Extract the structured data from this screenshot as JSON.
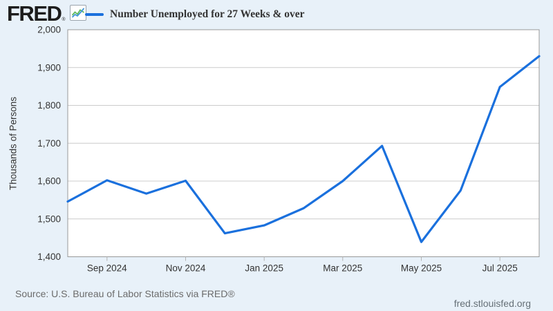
{
  "header": {
    "logo_text": "FRED",
    "logo_registered": "®"
  },
  "footer": {
    "source_text": "Source: U.S. Bureau of Labor Statistics via FRED®",
    "site_url": "fred.stlouisfed.org"
  },
  "colors": {
    "background": "#e8f1f9",
    "plot_background": "#ffffff",
    "line": "#1a70dd",
    "gridline": "#cccccc",
    "plot_border": "#999999",
    "tick_mark": "#b3b3b3",
    "tick_text": "#333333",
    "footer_text": "#6b6b6b",
    "logo_icon_green": "#5db85c",
    "logo_icon_blue": "#4196d8"
  },
  "chart_data": {
    "type": "line",
    "title": "Number Unemployed for 27 Weeks & over",
    "xlabel": "",
    "ylabel": "Thousands of Persons",
    "units": "Thousands of Persons",
    "x": [
      "Aug 2024",
      "Sep 2024",
      "Oct 2024",
      "Nov 2024",
      "Dec 2024",
      "Jan 2025",
      "Feb 2025",
      "Mar 2025",
      "Apr 2025",
      "May 2025",
      "Jun 2025",
      "Jul 2025",
      "Aug 2025"
    ],
    "values": [
      1546,
      1602,
      1567,
      1601,
      1462,
      1483,
      1528,
      1600,
      1693,
      1439,
      1575,
      1849,
      1930
    ],
    "ylim": [
      1400,
      2000
    ],
    "ytick_step": 100,
    "ytick_labels": [
      "1,400",
      "1,500",
      "1,600",
      "1,700",
      "1,800",
      "1,900",
      "2,000"
    ],
    "xtick_labels": [
      "Sep 2024",
      "Nov 2024",
      "Jan 2025",
      "Mar 2025",
      "May 2025",
      "Jul 2025"
    ],
    "xtick_indices": [
      1,
      3,
      5,
      7,
      9,
      11
    ],
    "grid": true,
    "legend_position": "top-left"
  }
}
